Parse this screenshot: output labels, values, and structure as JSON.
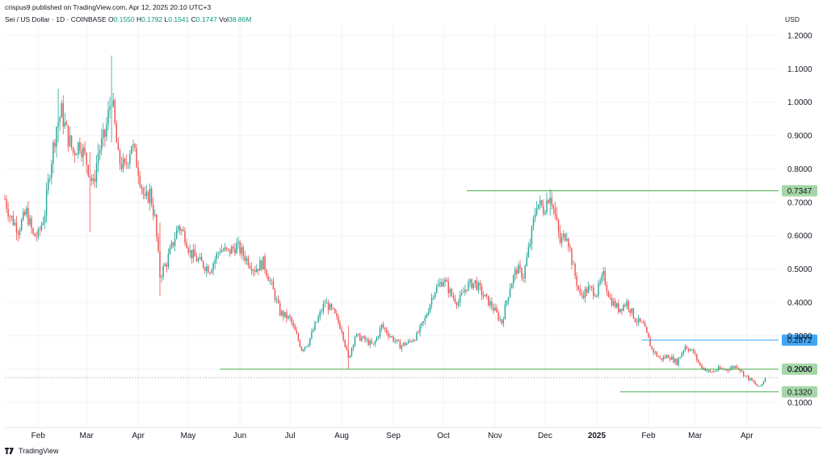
{
  "header": {
    "published_line": "crispus9 published on TradingView.com, Apr 12, 2025 20:10 UTC+3",
    "symbol": "Sei / US Dollar · 1D · COINBASE",
    "ohlc": {
      "o_label": "O",
      "o": "0.1550",
      "h_label": "H",
      "h": "0.1792",
      "l_label": "L",
      "l": "0.1541",
      "c_label": "C",
      "c": "0.1747",
      "vol_label": "Vol",
      "vol": "38.86M"
    },
    "currency": "USD"
  },
  "footer": {
    "brand": "TradingView"
  },
  "colors": {
    "up": "#26a69a",
    "down": "#ef5350",
    "level": "#4caf50",
    "current": "#2962ff",
    "grid": "#f0f3fa"
  },
  "chart_data": {
    "type": "candlestick",
    "x_axis_labels": [
      "Feb",
      "Mar",
      "Apr",
      "May",
      "Jun",
      "Jul",
      "Aug",
      "Sep",
      "Oct",
      "Nov",
      "Dec",
      "2025",
      "Feb",
      "Mar",
      "Apr"
    ],
    "y_axis_labels": [
      "1.2000",
      "1.1000",
      "1.0000",
      "0.9000",
      "0.8000",
      "0.7000",
      "0.6000",
      "0.5000",
      "0.4000",
      "0.3000",
      "0.2000",
      "0.1000"
    ],
    "ylim": [
      0.05,
      1.25
    ],
    "levels": [
      {
        "label": "0.7347",
        "value": 0.7347,
        "from": "2024-10-15"
      },
      {
        "label": "0.2000",
        "value": 0.2,
        "from": "2024-05-20"
      },
      {
        "label": "0.1320",
        "value": 0.132,
        "from": "2025-01-15"
      }
    ],
    "current_price": {
      "label": "0.2872",
      "value": 0.2872,
      "from": "2025-01-28"
    },
    "last_close_line": 0.1747,
    "anchors": [
      [
        "2024-01-12",
        0.71
      ],
      [
        "2024-01-15",
        0.66
      ],
      [
        "2024-01-20",
        0.62
      ],
      [
        "2024-01-25",
        0.67
      ],
      [
        "2024-01-29",
        0.6
      ],
      [
        "2024-02-01",
        0.6
      ],
      [
        "2024-02-05",
        0.67
      ],
      [
        "2024-02-08",
        0.8
      ],
      [
        "2024-02-12",
        0.93
      ],
      [
        "2024-02-15",
        0.97
      ],
      [
        "2024-02-18",
        0.91
      ],
      [
        "2024-02-22",
        0.85
      ],
      [
        "2024-02-26",
        0.88
      ],
      [
        "2024-03-01",
        0.82
      ],
      [
        "2024-03-05",
        0.75
      ],
      [
        "2024-03-08",
        0.85
      ],
      [
        "2024-03-12",
        0.9
      ],
      [
        "2024-03-16",
        1.02
      ],
      [
        "2024-03-20",
        0.83
      ],
      [
        "2024-03-24",
        0.8
      ],
      [
        "2024-03-28",
        0.88
      ],
      [
        "2024-04-01",
        0.8
      ],
      [
        "2024-04-05",
        0.7
      ],
      [
        "2024-04-08",
        0.73
      ],
      [
        "2024-04-11",
        0.65
      ],
      [
        "2024-04-14",
        0.48
      ],
      [
        "2024-04-18",
        0.52
      ],
      [
        "2024-04-22",
        0.58
      ],
      [
        "2024-04-25",
        0.63
      ],
      [
        "2024-04-29",
        0.6
      ],
      [
        "2024-05-02",
        0.55
      ],
      [
        "2024-05-08",
        0.52
      ],
      [
        "2024-05-14",
        0.5
      ],
      [
        "2024-05-20",
        0.56
      ],
      [
        "2024-05-25",
        0.55
      ],
      [
        "2024-05-30",
        0.57
      ],
      [
        "2024-06-05",
        0.53
      ],
      [
        "2024-06-10",
        0.5
      ],
      [
        "2024-06-15",
        0.52
      ],
      [
        "2024-06-20",
        0.45
      ],
      [
        "2024-06-25",
        0.37
      ],
      [
        "2024-07-01",
        0.35
      ],
      [
        "2024-07-05",
        0.3
      ],
      [
        "2024-07-08",
        0.26
      ],
      [
        "2024-07-12",
        0.28
      ],
      [
        "2024-07-16",
        0.33
      ],
      [
        "2024-07-22",
        0.4
      ],
      [
        "2024-07-27",
        0.37
      ],
      [
        "2024-08-01",
        0.32
      ],
      [
        "2024-08-05",
        0.23
      ],
      [
        "2024-08-09",
        0.3
      ],
      [
        "2024-08-14",
        0.29
      ],
      [
        "2024-08-20",
        0.27
      ],
      [
        "2024-08-25",
        0.33
      ],
      [
        "2024-08-30",
        0.3
      ],
      [
        "2024-09-05",
        0.27
      ],
      [
        "2024-09-10",
        0.28
      ],
      [
        "2024-09-15",
        0.3
      ],
      [
        "2024-09-20",
        0.35
      ],
      [
        "2024-09-25",
        0.43
      ],
      [
        "2024-10-01",
        0.47
      ],
      [
        "2024-10-06",
        0.42
      ],
      [
        "2024-10-10",
        0.4
      ],
      [
        "2024-10-15",
        0.45
      ],
      [
        "2024-10-20",
        0.46
      ],
      [
        "2024-10-25",
        0.42
      ],
      [
        "2024-10-30",
        0.39
      ],
      [
        "2024-11-05",
        0.34
      ],
      [
        "2024-11-10",
        0.45
      ],
      [
        "2024-11-14",
        0.5
      ],
      [
        "2024-11-18",
        0.48
      ],
      [
        "2024-11-22",
        0.58
      ],
      [
        "2024-11-26",
        0.7
      ],
      [
        "2024-11-30",
        0.68
      ],
      [
        "2024-12-04",
        0.73
      ],
      [
        "2024-12-07",
        0.66
      ],
      [
        "2024-12-10",
        0.58
      ],
      [
        "2024-12-14",
        0.61
      ],
      [
        "2024-12-18",
        0.5
      ],
      [
        "2024-12-22",
        0.42
      ],
      [
        "2024-12-27",
        0.44
      ],
      [
        "2025-01-01",
        0.43
      ],
      [
        "2025-01-05",
        0.48
      ],
      [
        "2025-01-09",
        0.41
      ],
      [
        "2025-01-14",
        0.38
      ],
      [
        "2025-01-19",
        0.4
      ],
      [
        "2025-01-24",
        0.35
      ],
      [
        "2025-01-29",
        0.33
      ],
      [
        "2025-02-03",
        0.26
      ],
      [
        "2025-02-08",
        0.23
      ],
      [
        "2025-02-13",
        0.24
      ],
      [
        "2025-02-18",
        0.22
      ],
      [
        "2025-02-23",
        0.27
      ],
      [
        "2025-02-28",
        0.25
      ],
      [
        "2025-03-04",
        0.21
      ],
      [
        "2025-03-10",
        0.19
      ],
      [
        "2025-03-15",
        0.2
      ],
      [
        "2025-03-20",
        0.2
      ],
      [
        "2025-03-26",
        0.21
      ],
      [
        "2025-03-31",
        0.18
      ],
      [
        "2025-04-05",
        0.16
      ],
      [
        "2025-04-08",
        0.145
      ],
      [
        "2025-04-10",
        0.155
      ],
      [
        "2025-04-12",
        0.1747
      ]
    ],
    "spikes": [
      [
        "2024-03-16",
        1.14,
        0.88
      ],
      [
        "2024-03-03",
        0.85,
        0.61
      ],
      [
        "2024-04-14",
        0.64,
        0.42
      ],
      [
        "2024-02-13",
        1.04,
        0.88
      ],
      [
        "2024-12-04",
        0.74,
        0.66
      ],
      [
        "2024-08-05",
        0.33,
        0.2
      ]
    ]
  }
}
